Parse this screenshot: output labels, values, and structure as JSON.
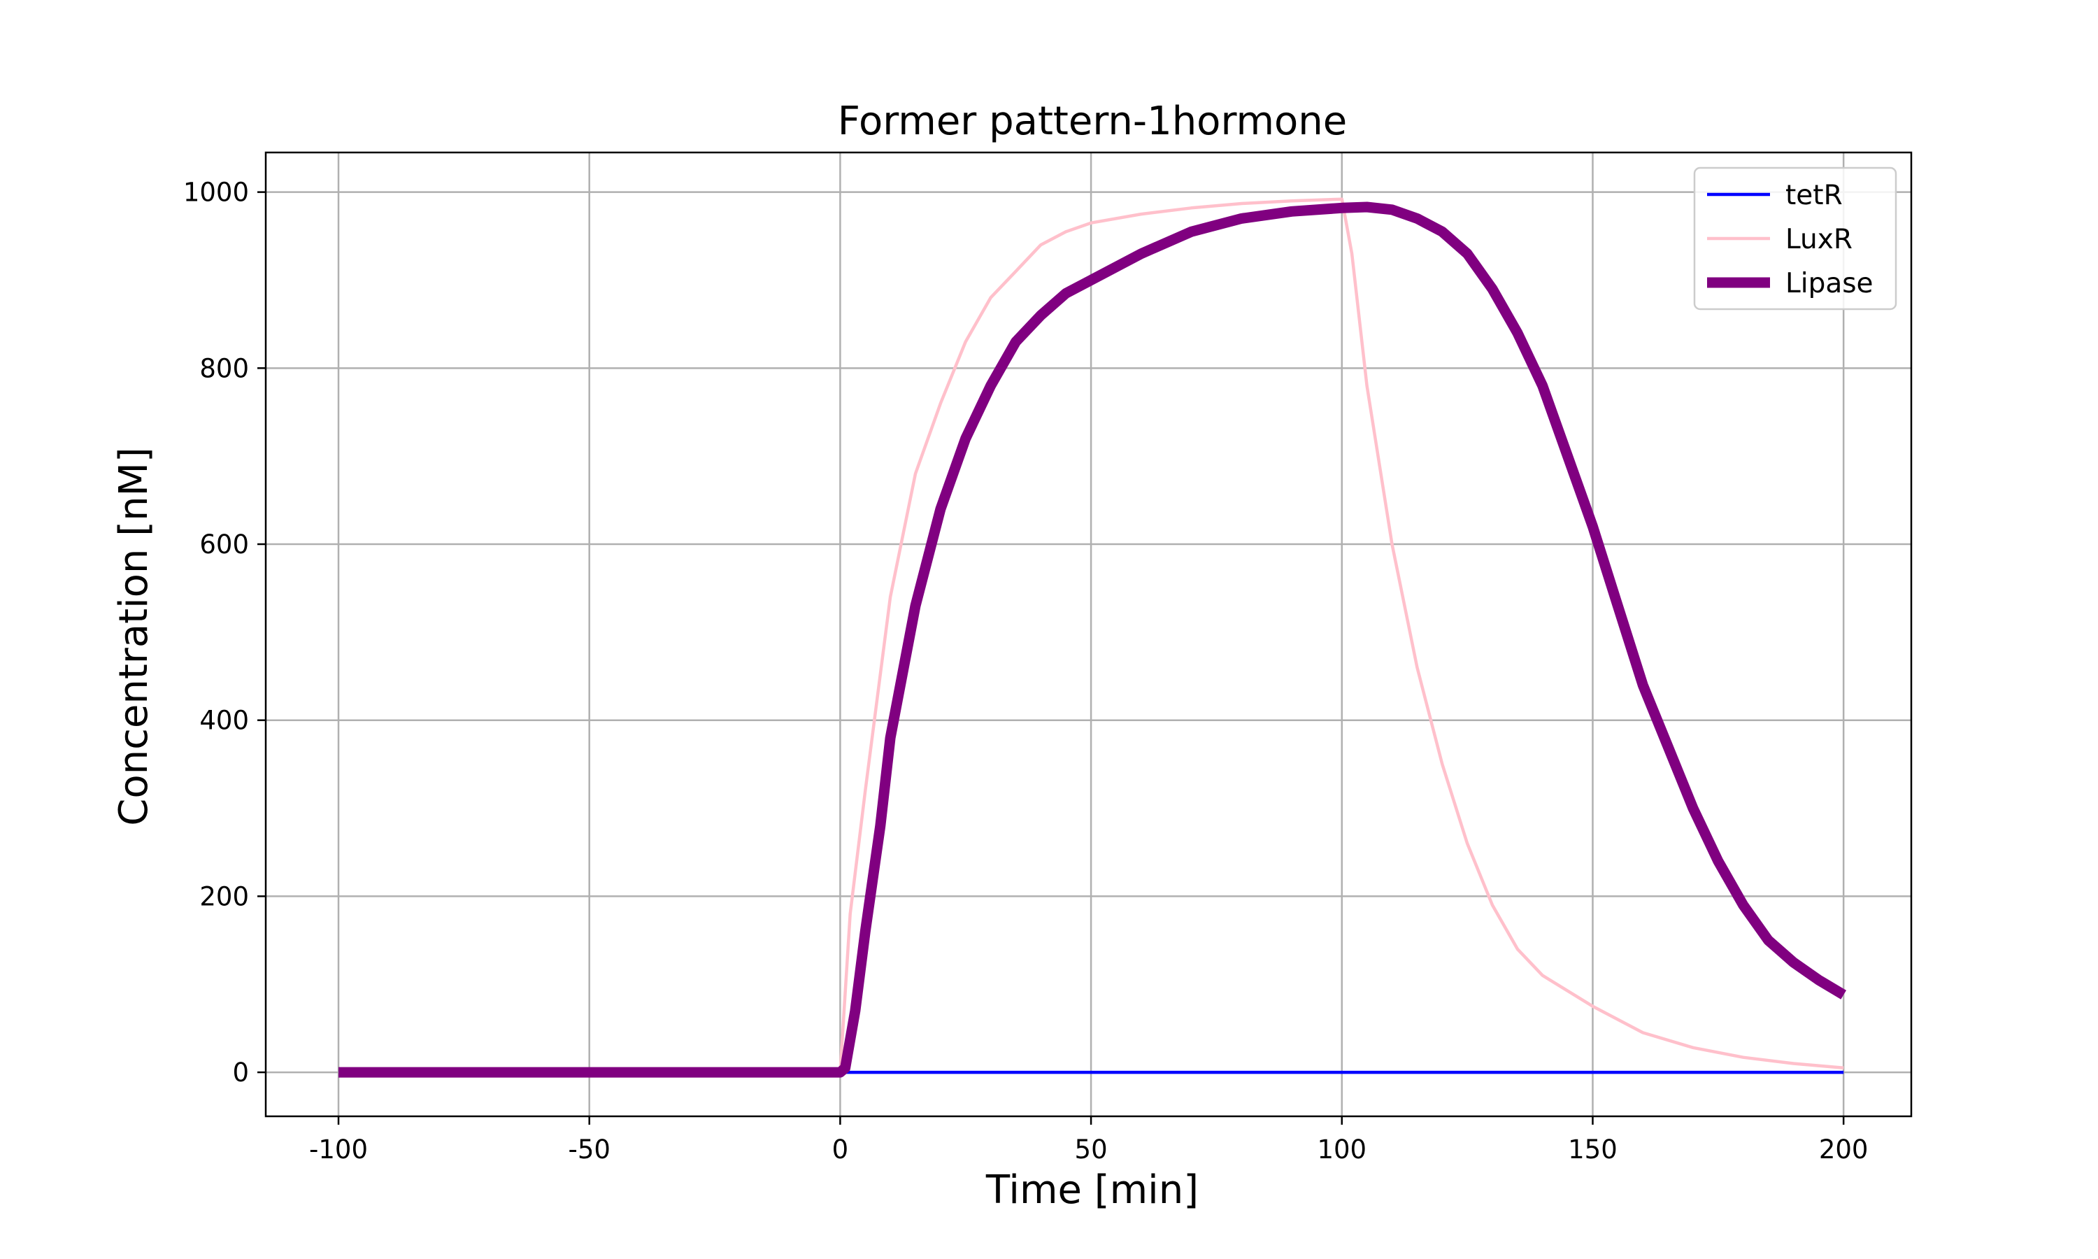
{
  "chart_data": {
    "type": "line",
    "title": "Former pattern-1hormone",
    "xlabel": "Time [min]",
    "ylabel": "Concentration [nM]",
    "xlim": [
      -114.5,
      213.5
    ],
    "ylim": [
      -50,
      1045
    ],
    "xticks": [
      -100,
      -50,
      0,
      50,
      100,
      150,
      200
    ],
    "xtick_labels": [
      "-100",
      "-50",
      "0",
      "50",
      "100",
      "150",
      "200"
    ],
    "yticks": [
      0,
      200,
      400,
      600,
      800,
      1000
    ],
    "ytick_labels": [
      "0",
      "200",
      "400",
      "600",
      "800",
      "1000"
    ],
    "grid": true,
    "legend": "upper-right",
    "series": [
      {
        "name": "tetR",
        "color": "#0000ff",
        "x": [
          0,
          25,
          50,
          75,
          100,
          125,
          150,
          175,
          200
        ],
        "y": [
          0,
          0,
          0,
          0,
          0,
          0,
          0,
          0,
          0
        ]
      },
      {
        "name": "LuxR",
        "color": "#ffc0cb",
        "x": [
          -100,
          -50,
          0,
          2,
          5,
          10,
          15,
          20,
          25,
          30,
          35,
          40,
          45,
          50,
          60,
          70,
          80,
          90,
          100,
          102,
          105,
          110,
          115,
          120,
          125,
          130,
          135,
          140,
          150,
          160,
          170,
          180,
          190,
          200
        ],
        "y": [
          0,
          0,
          0,
          180,
          320,
          540,
          680,
          760,
          830,
          880,
          910,
          940,
          955,
          965,
          975,
          982,
          987,
          990,
          992,
          930,
          780,
          600,
          460,
          350,
          260,
          190,
          140,
          110,
          75,
          45,
          28,
          17,
          10,
          5
        ]
      },
      {
        "name": "Lipase",
        "color": "#800080",
        "x": [
          -100,
          -50,
          0,
          1,
          3,
          5,
          8,
          10,
          15,
          20,
          25,
          30,
          35,
          40,
          45,
          50,
          60,
          70,
          80,
          90,
          100,
          105,
          110,
          115,
          120,
          125,
          130,
          135,
          140,
          145,
          150,
          155,
          160,
          165,
          170,
          175,
          180,
          185,
          190,
          195,
          200
        ],
        "y": [
          0,
          0,
          0,
          5,
          70,
          160,
          280,
          380,
          530,
          640,
          720,
          780,
          830,
          860,
          885,
          900,
          930,
          955,
          970,
          978,
          982,
          983,
          980,
          970,
          955,
          930,
          890,
          840,
          780,
          700,
          620,
          530,
          440,
          370,
          300,
          240,
          190,
          150,
          125,
          105,
          88
        ]
      }
    ]
  }
}
